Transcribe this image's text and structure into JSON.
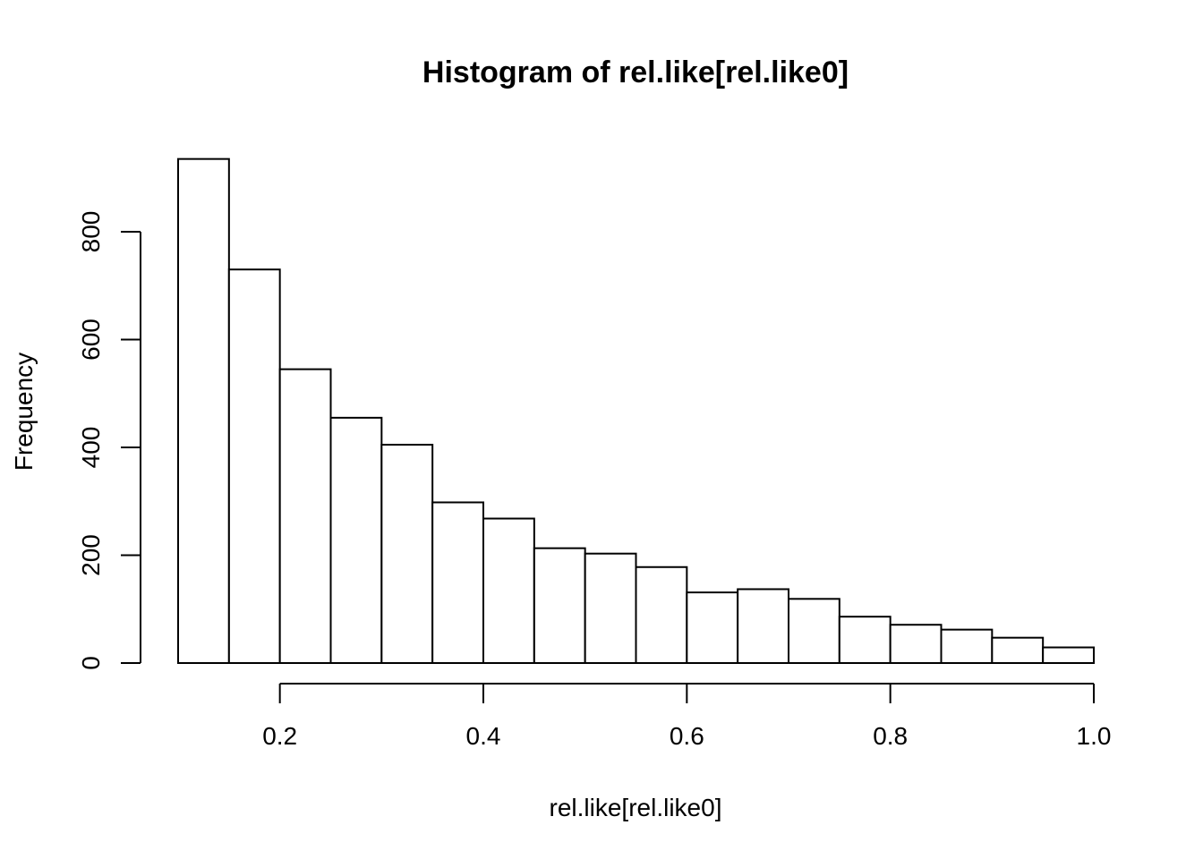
{
  "chart_data": {
    "type": "bar",
    "title": "Histogram of rel.like[rel.like0]",
    "xlabel": "rel.like[rel.like0]",
    "ylabel": "Frequency",
    "x_ticks": [
      "0.2",
      "0.4",
      "0.6",
      "0.8",
      "1.0"
    ],
    "y_ticks": [
      "0",
      "200",
      "400",
      "600",
      "800"
    ],
    "xlim": [
      0.1,
      1.0
    ],
    "ylim": [
      0,
      935
    ],
    "grid": false,
    "bins": [
      {
        "x0": 0.1,
        "x1": 0.15,
        "count": 935
      },
      {
        "x0": 0.15,
        "x1": 0.2,
        "count": 730
      },
      {
        "x0": 0.2,
        "x1": 0.25,
        "count": 545
      },
      {
        "x0": 0.25,
        "x1": 0.3,
        "count": 455
      },
      {
        "x0": 0.3,
        "x1": 0.35,
        "count": 405
      },
      {
        "x0": 0.35,
        "x1": 0.4,
        "count": 298
      },
      {
        "x0": 0.4,
        "x1": 0.45,
        "count": 268
      },
      {
        "x0": 0.45,
        "x1": 0.5,
        "count": 213
      },
      {
        "x0": 0.5,
        "x1": 0.55,
        "count": 203
      },
      {
        "x0": 0.55,
        "x1": 0.6,
        "count": 178
      },
      {
        "x0": 0.6,
        "x1": 0.65,
        "count": 131
      },
      {
        "x0": 0.65,
        "x1": 0.7,
        "count": 137
      },
      {
        "x0": 0.7,
        "x1": 0.75,
        "count": 119
      },
      {
        "x0": 0.75,
        "x1": 0.8,
        "count": 86
      },
      {
        "x0": 0.8,
        "x1": 0.85,
        "count": 71
      },
      {
        "x0": 0.85,
        "x1": 0.9,
        "count": 62
      },
      {
        "x0": 0.9,
        "x1": 0.95,
        "count": 47
      },
      {
        "x0": 0.95,
        "x1": 1.0,
        "count": 29
      }
    ]
  }
}
